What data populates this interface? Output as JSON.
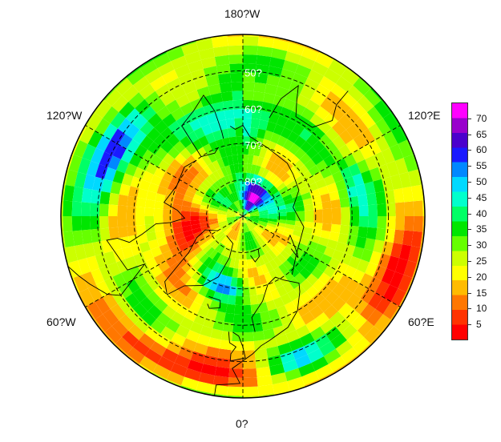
{
  "map": {
    "projection": "north-polar-stereographic",
    "lat_circles": [
      50,
      60,
      70,
      80
    ],
    "lat_labels": [
      "50?",
      "60?",
      "70?",
      "80?"
    ],
    "lon_labels": {
      "top": "180?W",
      "upper_left": "120?W",
      "upper_right": "120?E",
      "lower_left": "60?W",
      "lower_right": "60?E",
      "bottom": "0?"
    }
  },
  "colorbar": {
    "ticks": [
      "5",
      "10",
      "15",
      "20",
      "25",
      "30",
      "35",
      "40",
      "45",
      "50",
      "55",
      "60",
      "65",
      "70"
    ],
    "min": 0,
    "max": 75,
    "colors": [
      "#ff0000",
      "#ff3300",
      "#ff7700",
      "#ffbb00",
      "#ffff00",
      "#ccff00",
      "#66ff00",
      "#00e600",
      "#00ff66",
      "#00ffcc",
      "#00d9ff",
      "#0088ff",
      "#1a1aff",
      "#4b00cc",
      "#9900cc",
      "#ff00ff"
    ]
  }
}
